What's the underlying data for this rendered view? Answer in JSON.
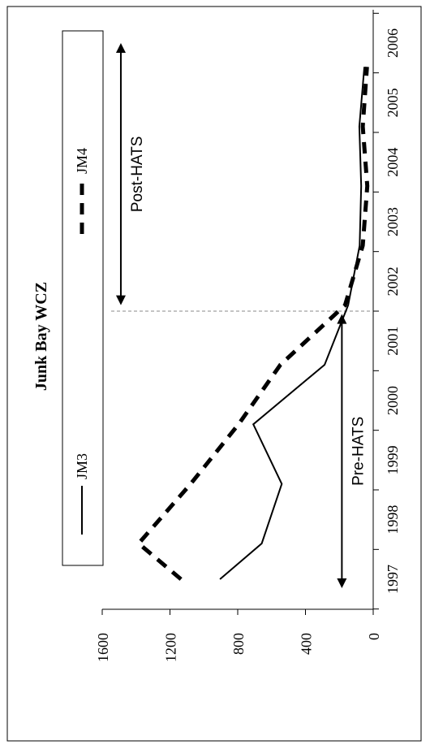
{
  "chart_data": {
    "type": "line",
    "title": "Junk Bay WCZ",
    "orientation": "rotated-90-clockwise",
    "x": [
      1997,
      1998,
      1999,
      2000,
      2001,
      2002,
      2003,
      2004,
      2005,
      2006
    ],
    "x_tick_labels": [
      "1997",
      "1998",
      "1999",
      "2000",
      "2001",
      "2002",
      "2003",
      "2004",
      "2005",
      "2006"
    ],
    "ylim": [
      0,
      1600
    ],
    "y_ticks": [
      0,
      400,
      800,
      1200,
      1600
    ],
    "y_tick_labels": [
      "0",
      "400",
      "800",
      "1200",
      "1600"
    ],
    "grid": false,
    "legend": {
      "placement": "top",
      "entries": [
        "JM3",
        "JM4"
      ]
    },
    "series": [
      {
        "name": "JM3",
        "style": "solid",
        "x": [
          1997.0,
          1997.6,
          1998.6,
          1999.6,
          2000.6,
          2001.6,
          2002.6,
          2003.6,
          2004.6,
          2005.6
        ],
        "values": [
          905,
          658,
          540,
          708,
          287,
          148,
          80,
          71,
          82,
          52
        ]
      },
      {
        "name": "JM4",
        "style": "dashed",
        "x": [
          1997.0,
          1997.6,
          1998.6,
          1999.6,
          2000.6,
          2001.6,
          2002.6,
          2003.6,
          2004.6,
          2005.6
        ],
        "values": [
          1135,
          1385,
          1078,
          795,
          548,
          166,
          62,
          35,
          62,
          37
        ]
      }
    ],
    "annotations": [
      {
        "label": "Pre-HATS",
        "from": 1996.85,
        "to": 2001.45,
        "value": 185
      },
      {
        "label": "Post-HATS",
        "from": 2001.6,
        "to": 2006.0,
        "value": 1490
      }
    ],
    "divider_x": 2001.5
  }
}
